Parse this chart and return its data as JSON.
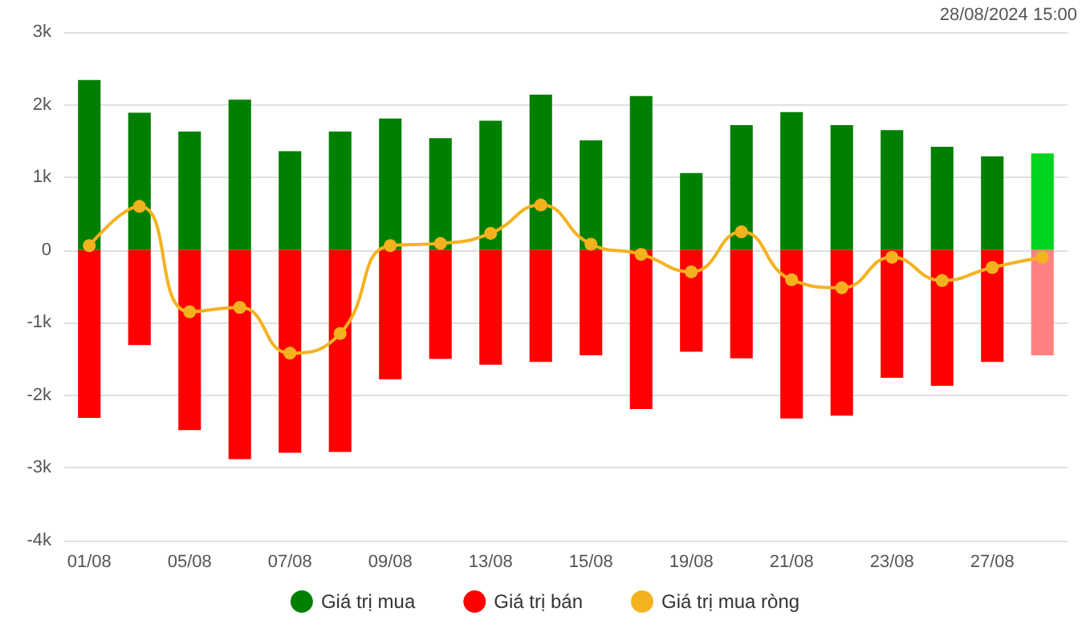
{
  "chart_data": {
    "type": "bar",
    "stacked": true,
    "categories": [
      "01/08",
      null,
      "05/08",
      null,
      "07/08",
      null,
      "09/08",
      null,
      "13/08",
      null,
      "15/08",
      null,
      "19/08",
      null,
      "21/08",
      null,
      "23/08",
      null,
      "27/08",
      null
    ],
    "series": [
      {
        "name": "Giá trị mua",
        "color": "#008000",
        "colors": [
          "#008000",
          "#008000",
          "#008000",
          "#008000",
          "#008000",
          "#008000",
          "#008000",
          "#008000",
          "#008000",
          "#008000",
          "#008000",
          "#008000",
          "#008000",
          "#008000",
          "#008000",
          "#008000",
          "#008000",
          "#008000",
          "#008000",
          "#00d41e"
        ],
        "values": [
          2340,
          1890,
          1630,
          2070,
          1360,
          1630,
          1810,
          1540,
          1780,
          2140,
          1510,
          2120,
          1060,
          1720,
          1900,
          1720,
          1650,
          1420,
          1290,
          1330
        ]
      },
      {
        "name": "Giá trị bán",
        "color": "#ff0000",
        "colors": [
          "#ff0000",
          "#ff0000",
          "#ff0000",
          "#ff0000",
          "#ff0000",
          "#ff0000",
          "#ff0000",
          "#ff0000",
          "#ff0000",
          "#ff0000",
          "#ff0000",
          "#ff0000",
          "#ff0000",
          "#ff0000",
          "#ff0000",
          "#ff0000",
          "#ff0000",
          "#ff0000",
          "#ff0000",
          "#ff8080"
        ],
        "values": [
          -2310,
          -1310,
          -2480,
          -2880,
          -2790,
          -2780,
          -1780,
          -1500,
          -1580,
          -1540,
          -1450,
          -2190,
          -1400,
          -1490,
          -2320,
          -2280,
          -1760,
          -1870,
          -1540,
          -1450
        ]
      },
      {
        "name": "Giá trị mua ròng",
        "type": "line",
        "color": "#f5b21f",
        "values": [
          60,
          600,
          -850,
          -790,
          -1420,
          -1150,
          60,
          90,
          230,
          620,
          80,
          -60,
          -300,
          250,
          -410,
          -520,
          -100,
          -420,
          -240,
          -100
        ]
      }
    ],
    "ylim": [
      -4000,
      3000
    ],
    "yticks": [
      {
        "value": -4000,
        "label": "-4k"
      },
      {
        "value": -3000,
        "label": "-3k"
      },
      {
        "value": -2000,
        "label": "-2k"
      },
      {
        "value": -1000,
        "label": "-1k"
      },
      {
        "value": 0,
        "label": "0"
      },
      {
        "value": 1000,
        "label": "1k"
      },
      {
        "value": 2000,
        "label": "2k"
      },
      {
        "value": 3000,
        "label": "3k"
      }
    ],
    "grid": "y",
    "legend": "bottom",
    "marker": "circle",
    "line_style": "solid",
    "annotations": [
      "28/08/2024 15:00"
    ]
  }
}
